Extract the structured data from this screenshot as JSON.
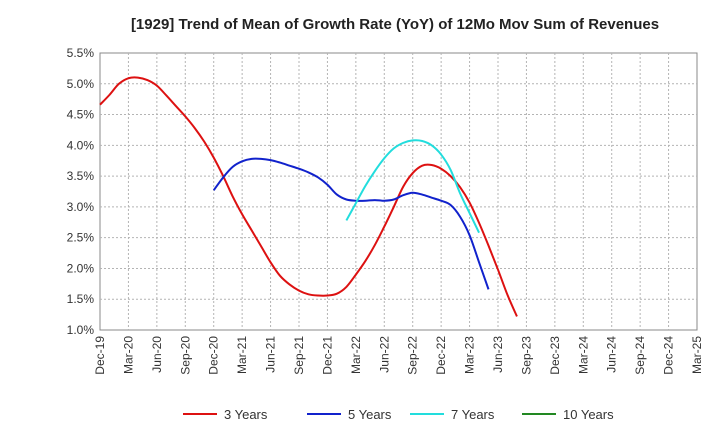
{
  "chart_data": {
    "type": "line",
    "title": "[1929]  Trend of Mean of Growth Rate (YoY) of 12Mo Mov Sum of Revenues",
    "xlabel": "",
    "ylabel": "",
    "ylim": [
      1.0,
      5.5
    ],
    "y_ticks": [
      1.0,
      1.5,
      2.0,
      2.5,
      3.0,
      3.5,
      4.0,
      4.5,
      5.0,
      5.5
    ],
    "y_tick_labels": [
      "1.0%",
      "1.5%",
      "2.0%",
      "2.5%",
      "3.0%",
      "3.5%",
      "4.0%",
      "4.5%",
      "5.0%",
      "5.5%"
    ],
    "x_tick_labels": [
      "Dec-19",
      "Mar-20",
      "Jun-20",
      "Sep-20",
      "Dec-20",
      "Mar-21",
      "Jun-21",
      "Sep-21",
      "Dec-21",
      "Mar-22",
      "Jun-22",
      "Sep-22",
      "Dec-22",
      "Mar-23",
      "Jun-23",
      "Sep-23",
      "Dec-23",
      "Mar-24",
      "Jun-24",
      "Sep-24",
      "Dec-24",
      "Mar-25"
    ],
    "grid": true,
    "legend_position": "bottom",
    "series": [
      {
        "name": "3 Years",
        "color": "#dd1111",
        "points": [
          [
            0,
            4.66
          ],
          [
            1,
            4.82
          ],
          [
            2,
            5.0
          ],
          [
            3,
            5.09
          ],
          [
            4,
            5.1
          ],
          [
            5,
            5.06
          ],
          [
            6,
            4.97
          ],
          [
            7,
            4.81
          ],
          [
            8,
            4.64
          ],
          [
            9,
            4.47
          ],
          [
            10,
            4.28
          ],
          [
            11,
            4.06
          ],
          [
            12,
            3.8
          ],
          [
            13,
            3.5
          ],
          [
            14,
            3.17
          ],
          [
            15,
            2.88
          ],
          [
            16,
            2.62
          ],
          [
            17,
            2.36
          ],
          [
            18,
            2.1
          ],
          [
            19,
            1.88
          ],
          [
            20,
            1.74
          ],
          [
            21,
            1.64
          ],
          [
            22,
            1.58
          ],
          [
            23,
            1.56
          ],
          [
            24,
            1.56
          ],
          [
            25,
            1.59
          ],
          [
            26,
            1.7
          ],
          [
            27,
            1.9
          ],
          [
            28,
            2.12
          ],
          [
            29,
            2.38
          ],
          [
            30,
            2.68
          ],
          [
            31,
            3.0
          ],
          [
            32,
            3.33
          ],
          [
            33,
            3.55
          ],
          [
            34,
            3.67
          ],
          [
            35,
            3.68
          ],
          [
            36,
            3.62
          ],
          [
            37,
            3.5
          ],
          [
            38,
            3.32
          ],
          [
            39,
            3.07
          ],
          [
            40,
            2.74
          ],
          [
            41,
            2.37
          ],
          [
            42,
            1.98
          ],
          [
            43,
            1.57
          ],
          [
            44,
            1.22
          ]
        ]
      },
      {
        "name": "5 Years",
        "color": "#1122cc",
        "points": [
          [
            12,
            3.27
          ],
          [
            13,
            3.48
          ],
          [
            14,
            3.65
          ],
          [
            15,
            3.74
          ],
          [
            16,
            3.78
          ],
          [
            17,
            3.78
          ],
          [
            18,
            3.76
          ],
          [
            19,
            3.72
          ],
          [
            20,
            3.67
          ],
          [
            21,
            3.62
          ],
          [
            22,
            3.56
          ],
          [
            23,
            3.48
          ],
          [
            24,
            3.36
          ],
          [
            25,
            3.2
          ],
          [
            26,
            3.12
          ],
          [
            27,
            3.1
          ],
          [
            28,
            3.1
          ],
          [
            29,
            3.11
          ],
          [
            30,
            3.1
          ],
          [
            31,
            3.12
          ],
          [
            32,
            3.19
          ],
          [
            33,
            3.23
          ],
          [
            34,
            3.2
          ],
          [
            35,
            3.15
          ],
          [
            36,
            3.1
          ],
          [
            37,
            3.03
          ],
          [
            38,
            2.84
          ],
          [
            39,
            2.54
          ],
          [
            40,
            2.1
          ],
          [
            41,
            1.66
          ]
        ]
      },
      {
        "name": "7 Years",
        "color": "#22dddd",
        "points": [
          [
            26,
            2.78
          ],
          [
            27,
            3.06
          ],
          [
            28,
            3.34
          ],
          [
            29,
            3.58
          ],
          [
            30,
            3.79
          ],
          [
            31,
            3.95
          ],
          [
            32,
            4.04
          ],
          [
            33,
            4.08
          ],
          [
            34,
            4.07
          ],
          [
            35,
            4.0
          ],
          [
            36,
            3.85
          ],
          [
            37,
            3.6
          ],
          [
            38,
            3.22
          ],
          [
            39,
            2.9
          ],
          [
            40,
            2.58
          ]
        ]
      },
      {
        "name": "10 Years",
        "color": "#228822",
        "points": []
      }
    ]
  }
}
